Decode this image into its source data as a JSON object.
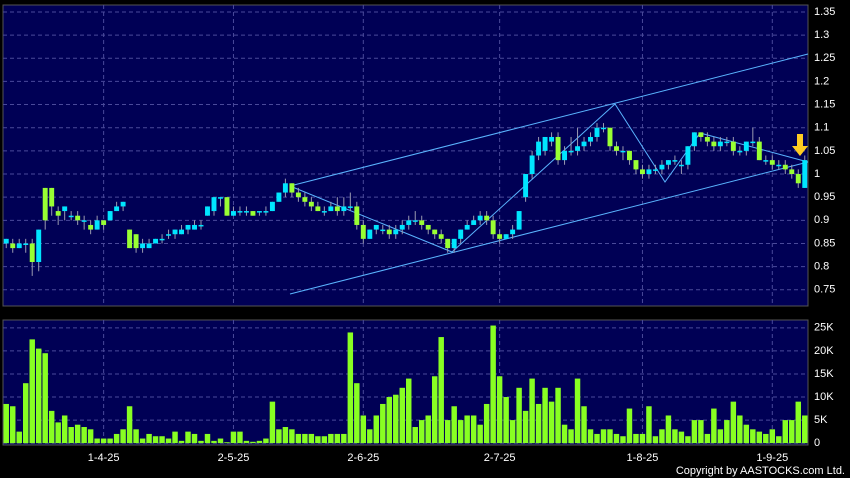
{
  "chart_data": {
    "type": "candlestick",
    "categories": [
      null,
      null,
      null,
      null,
      null,
      null,
      null,
      null,
      null,
      null,
      null,
      null,
      null,
      null,
      null,
      "1-4-25",
      null,
      null,
      null,
      null,
      null,
      null,
      null,
      null,
      null,
      null,
      null,
      null,
      null,
      null,
      null,
      null,
      null,
      null,
      null,
      "2-5-25",
      null,
      null,
      null,
      null,
      null,
      null,
      null,
      null,
      null,
      null,
      null,
      null,
      null,
      null,
      null,
      null,
      null,
      null,
      null,
      "2-6-25",
      null,
      null,
      null,
      null,
      null,
      null,
      null,
      null,
      null,
      null,
      null,
      null,
      null,
      null,
      null,
      null,
      null,
      null,
      null,
      null,
      "2-7-25",
      null,
      null,
      null,
      null,
      null,
      null,
      null,
      null,
      null,
      null,
      null,
      null,
      null,
      null,
      null,
      null,
      null,
      null,
      null,
      null,
      null,
      "1-8-25",
      null,
      null,
      null,
      null,
      null,
      null,
      null,
      null,
      null,
      null,
      null,
      null,
      null,
      null,
      null,
      null,
      null,
      null,
      null,
      "1-9-25",
      null,
      null,
      null,
      null,
      null
    ],
    "open": [
      0.85,
      0.85,
      0.84,
      0.85,
      0.85,
      0.81,
      0.97,
      0.97,
      0.92,
      0.92,
      0.91,
      0.91,
      0.9,
      0.89,
      0.88,
      0.9,
      0.9,
      0.92,
      0.93,
      0.88,
      0.87,
      0.84,
      0.84,
      0.85,
      0.86,
      0.87,
      0.87,
      0.87,
      0.88,
      0.88,
      0.89,
      0.91,
      0.92,
      0.95,
      0.95,
      0.91,
      0.92,
      0.92,
      0.92,
      0.92,
      0.92,
      0.92,
      0.94,
      0.96,
      0.98,
      0.96,
      0.95,
      0.94,
      0.93,
      0.92,
      0.92,
      0.93,
      0.92,
      0.93,
      0.93,
      0.89,
      0.86,
      0.88,
      0.88,
      0.88,
      0.87,
      0.88,
      0.89,
      0.9,
      0.9,
      0.89,
      0.88,
      0.87,
      0.86,
      0.84,
      0.86,
      0.88,
      0.89,
      0.9,
      0.91,
      0.9,
      0.87,
      0.86,
      0.87,
      0.88,
      0.95,
      1.0,
      1.04,
      1.05,
      1.07,
      1.08,
      1.03,
      1.05,
      1.05,
      1.06,
      1.07,
      1.08,
      1.1,
      1.1,
      1.06,
      1.05,
      1.05,
      1.03,
      1.01,
      1.0,
      1.01,
      1.01,
      1.02,
      1.03,
      1.02,
      1.02,
      1.06,
      1.09,
      1.08,
      1.07,
      1.06,
      1.07,
      1.07,
      1.05,
      1.05,
      1.07,
      1.07,
      1.03,
      1.03,
      1.02,
      1.02,
      1.01,
      1.0,
      0.97
    ],
    "high": [
      0.86,
      0.86,
      0.86,
      0.86,
      0.86,
      0.88,
      0.97,
      0.97,
      0.93,
      0.93,
      0.92,
      0.92,
      0.91,
      0.9,
      0.91,
      0.9,
      0.92,
      0.94,
      0.94,
      0.88,
      0.87,
      0.86,
      0.86,
      0.86,
      0.87,
      0.88,
      0.88,
      0.89,
      0.89,
      0.9,
      0.9,
      0.93,
      0.95,
      0.95,
      0.95,
      0.93,
      0.93,
      0.93,
      0.92,
      0.92,
      0.93,
      0.94,
      0.96,
      0.99,
      0.98,
      0.97,
      0.96,
      0.95,
      0.94,
      0.93,
      0.94,
      0.95,
      0.95,
      0.96,
      0.94,
      0.9,
      0.88,
      0.89,
      0.89,
      0.89,
      0.89,
      0.9,
      0.91,
      0.92,
      0.91,
      0.89,
      0.88,
      0.88,
      0.86,
      0.86,
      0.88,
      0.9,
      0.91,
      0.92,
      0.92,
      0.91,
      0.88,
      0.87,
      0.89,
      0.92,
      1.0,
      1.05,
      1.08,
      1.08,
      1.09,
      1.09,
      1.06,
      1.08,
      1.1,
      1.08,
      1.09,
      1.11,
      1.11,
      1.1,
      1.07,
      1.06,
      1.05,
      1.03,
      1.02,
      1.02,
      1.02,
      1.03,
      1.03,
      1.04,
      1.03,
      1.06,
      1.09,
      1.09,
      1.09,
      1.08,
      1.08,
      1.08,
      1.08,
      1.06,
      1.07,
      1.1,
      1.08,
      1.04,
      1.04,
      1.03,
      1.03,
      1.02,
      1.01,
      1.04
    ],
    "low": [
      0.84,
      0.83,
      0.84,
      0.83,
      0.78,
      0.79,
      0.88,
      0.91,
      0.89,
      0.9,
      0.9,
      0.89,
      0.88,
      0.87,
      0.88,
      0.88,
      0.9,
      0.92,
      0.92,
      0.84,
      0.83,
      0.83,
      0.84,
      0.85,
      0.85,
      0.86,
      0.86,
      0.87,
      0.87,
      0.88,
      0.88,
      0.91,
      0.91,
      0.93,
      0.91,
      0.91,
      0.91,
      0.91,
      0.91,
      0.91,
      0.91,
      0.92,
      0.94,
      0.95,
      0.95,
      0.94,
      0.93,
      0.92,
      0.92,
      0.91,
      0.92,
      0.91,
      0.91,
      0.92,
      0.88,
      0.85,
      0.86,
      0.87,
      0.87,
      0.86,
      0.86,
      0.87,
      0.88,
      0.89,
      0.88,
      0.87,
      0.86,
      0.85,
      0.83,
      0.83,
      0.85,
      0.88,
      0.89,
      0.89,
      0.89,
      0.86,
      0.85,
      0.86,
      0.86,
      0.88,
      0.94,
      0.99,
      1.03,
      1.04,
      1.06,
      1.02,
      1.02,
      1.04,
      1.04,
      1.05,
      1.06,
      1.07,
      1.09,
      1.05,
      1.04,
      1.03,
      1.02,
      1.0,
      0.99,
      0.99,
      1.0,
      1.0,
      1.01,
      1.02,
      1.0,
      1.01,
      1.05,
      1.07,
      1.06,
      1.05,
      1.05,
      1.06,
      1.04,
      1.04,
      1.04,
      1.06,
      1.03,
      1.02,
      1.01,
      1.01,
      1.0,
      0.99,
      0.97,
      0.97
    ],
    "close": [
      0.86,
      0.84,
      0.85,
      0.85,
      0.81,
      0.88,
      0.9,
      0.93,
      0.91,
      0.93,
      0.91,
      0.9,
      0.9,
      0.88,
      0.9,
      0.89,
      0.92,
      0.93,
      0.94,
      0.84,
      0.84,
      0.85,
      0.85,
      0.86,
      0.86,
      0.87,
      0.88,
      0.88,
      0.89,
      0.89,
      0.89,
      0.93,
      0.95,
      0.95,
      0.91,
      0.92,
      0.92,
      0.92,
      0.91,
      0.92,
      0.92,
      0.94,
      0.96,
      0.98,
      0.96,
      0.95,
      0.94,
      0.93,
      0.92,
      0.92,
      0.93,
      0.92,
      0.93,
      0.93,
      0.89,
      0.86,
      0.88,
      0.89,
      0.88,
      0.87,
      0.88,
      0.89,
      0.9,
      0.9,
      0.89,
      0.88,
      0.87,
      0.86,
      0.84,
      0.86,
      0.88,
      0.89,
      0.9,
      0.91,
      0.9,
      0.87,
      0.86,
      0.87,
      0.88,
      0.92,
      1.0,
      1.04,
      1.07,
      1.08,
      1.08,
      1.03,
      1.05,
      1.05,
      1.06,
      1.07,
      1.08,
      1.1,
      1.1,
      1.06,
      1.05,
      1.05,
      1.03,
      1.01,
      1.0,
      1.01,
      1.01,
      1.02,
      1.03,
      1.03,
      1.02,
      1.06,
      1.09,
      1.08,
      1.07,
      1.06,
      1.07,
      1.07,
      1.05,
      1.05,
      1.07,
      1.07,
      1.03,
      1.03,
      1.02,
      1.02,
      1.01,
      1.0,
      0.98,
      1.03
    ],
    "up_color": "#00e5ff",
    "down_color": "#99ff33",
    "ylim": [
      0.715,
      1.365
    ],
    "yticks": [
      0.75,
      0.8,
      0.85,
      0.9,
      0.95,
      1,
      1.05,
      1.1,
      1.15,
      1.2,
      1.25,
      1.3,
      1.35
    ],
    "grid": true,
    "volume": {
      "color": "#88ff22",
      "values": [
        8500,
        8000,
        2500,
        13000,
        22500,
        20500,
        19500,
        7000,
        4500,
        6000,
        3500,
        4000,
        3500,
        3000,
        1000,
        1000,
        1000,
        2000,
        3000,
        8000,
        3000,
        1000,
        2000,
        1500,
        1500,
        1000,
        2500,
        500,
        2500,
        2000,
        500,
        2000,
        500,
        1000,
        200,
        2500,
        2500,
        500,
        300,
        500,
        1000,
        9000,
        3000,
        3500,
        3000,
        2000,
        2000,
        2000,
        1500,
        1500,
        2000,
        2000,
        2000,
        24000,
        13000,
        6000,
        3000,
        6000,
        8500,
        10000,
        10500,
        12000,
        14000,
        3500,
        5000,
        6000,
        14500,
        23000,
        5000,
        8000,
        5000,
        6000,
        6000,
        4000,
        8500,
        25500,
        14500,
        10000,
        5000,
        12000,
        7000,
        14000,
        8500,
        12000,
        9000,
        12000,
        4000,
        3000,
        14000,
        8000,
        3000,
        2000,
        3000,
        3000,
        2000,
        1500,
        7500,
        2000,
        2000,
        8000,
        1500,
        3000,
        6000,
        3000,
        2500,
        1500,
        5000,
        5000,
        2000,
        7500,
        3000,
        5000,
        9000,
        6000,
        4000,
        3000,
        2500,
        2000,
        3000,
        1500,
        5000,
        5000,
        9000,
        6000
      ],
      "ylim": [
        -400,
        26700
      ],
      "yticks": [
        0,
        {
          "value": 5000,
          "label": "5K"
        },
        {
          "value": 10000,
          "label": "10K"
        },
        {
          "value": 15000,
          "label": "15K"
        },
        {
          "value": 20000,
          "label": "20K"
        },
        {
          "value": 25000,
          "label": "25K"
        }
      ]
    },
    "footer": "Copyright by AASTOCKS.com Ltd."
  }
}
